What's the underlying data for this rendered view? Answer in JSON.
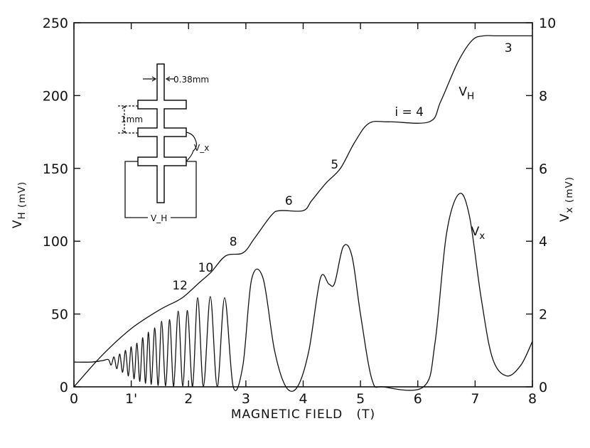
{
  "chart_data": {
    "type": "line",
    "title": "",
    "xlabel": "MAGNETIC FIELD   (T)",
    "ylabel_left": "V_H (mV)",
    "ylabel_right": "V_x (mV)",
    "x_ticks": [
      0,
      1,
      2,
      3,
      4,
      5,
      6,
      7,
      8
    ],
    "x_tick_labels": [
      "0",
      "1'",
      "2",
      "3",
      "4",
      "5",
      "6",
      "7",
      "8"
    ],
    "y_left_ticks": [
      0,
      50,
      100,
      150,
      200,
      250
    ],
    "y_right_ticks": [
      0,
      2,
      4,
      6,
      8,
      10
    ],
    "xlim": [
      0,
      8
    ],
    "ylim_left": [
      0,
      250
    ],
    "ylim_right": [
      0,
      10
    ],
    "grid": false,
    "series": [
      {
        "name": "V_H",
        "axis": "left",
        "x": [
          0,
          0.5,
          1.0,
          1.5,
          1.8,
          1.95,
          2.2,
          2.4,
          2.65,
          2.95,
          3.15,
          3.45,
          3.6,
          4.0,
          4.15,
          4.4,
          4.65,
          4.9,
          5.15,
          5.5,
          6.2,
          6.4,
          6.7,
          6.95,
          7.15,
          7.4,
          8.0
        ],
        "y": [
          0,
          22,
          40,
          53,
          59,
          63,
          72,
          79,
          90,
          92,
          102,
          118,
          121,
          121,
          128,
          140,
          150,
          168,
          181,
          182,
          182,
          196,
          223,
          238,
          241,
          241,
          241
        ]
      },
      {
        "name": "V_x",
        "axis": "right",
        "x": [
          0,
          0.3,
          0.5,
          0.6,
          0.65,
          0.7,
          0.75,
          0.8,
          0.85,
          0.9,
          0.95,
          1.0,
          1.05,
          1.1,
          1.15,
          1.2,
          1.25,
          1.3,
          1.35,
          1.41,
          1.47,
          1.53,
          1.6,
          1.67,
          1.74,
          1.82,
          1.9,
          1.98,
          2.07,
          2.16,
          2.26,
          2.38,
          2.5,
          2.63,
          2.78,
          2.95,
          3.1,
          3.3,
          3.5,
          3.7,
          3.9,
          4.1,
          4.3,
          4.45,
          4.55,
          4.7,
          4.85,
          5.0,
          5.2,
          5.4,
          6.1,
          6.3,
          6.5,
          6.72,
          6.9,
          7.1,
          7.3,
          7.55,
          7.8,
          8.0
        ],
        "y": [
          0.68,
          0.68,
          0.72,
          0.75,
          0.6,
          0.82,
          0.5,
          0.9,
          0.4,
          1.0,
          0.3,
          1.1,
          0.22,
          1.2,
          0.15,
          1.35,
          0.1,
          1.5,
          0.07,
          1.62,
          0.04,
          1.8,
          0.03,
          1.85,
          0.02,
          2.08,
          0.02,
          2.1,
          0.01,
          2.45,
          0.01,
          2.48,
          0.0,
          2.45,
          0.0,
          0.6,
          2.95,
          2.98,
          1.0,
          0.0,
          0.0,
          1.0,
          2.98,
          2.82,
          2.85,
          3.85,
          3.6,
          2.0,
          0.2,
          0.0,
          0.0,
          1.2,
          4.2,
          5.3,
          4.7,
          2.5,
          0.8,
          0.3,
          0.6,
          1.25
        ]
      }
    ],
    "annotations": [
      {
        "text": "12",
        "x": 1.85,
        "y_left": 67
      },
      {
        "text": "10",
        "x": 2.3,
        "y_left": 79
      },
      {
        "text": "8",
        "x": 2.78,
        "y_left": 97
      },
      {
        "text": "6",
        "x": 3.75,
        "y_left": 125
      },
      {
        "text": "5",
        "x": 4.55,
        "y_left": 150
      },
      {
        "text": "i = 4",
        "x": 5.85,
        "y_left": 186
      },
      {
        "text": "3",
        "x": 7.58,
        "y_left": 230
      },
      {
        "text": "V_H",
        "x": 6.85,
        "y_left": 200
      },
      {
        "text": "V_x",
        "x": 7.05,
        "y_left": 104
      }
    ],
    "inset": {
      "width_label": "0.38mm",
      "spacing_label": "1mm",
      "vx_label": "V_x",
      "vh_label": "V_H"
    }
  }
}
